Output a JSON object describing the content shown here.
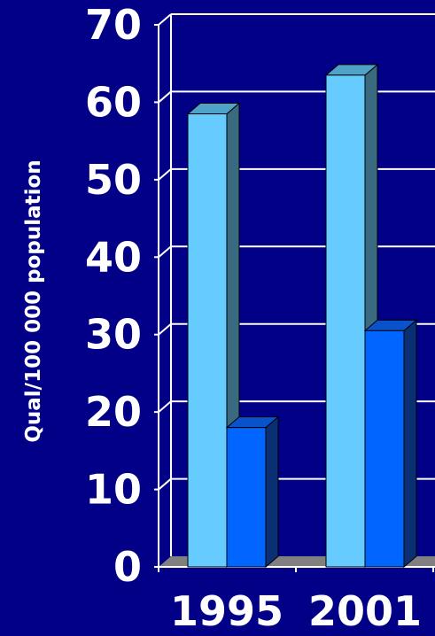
{
  "chart_data": {
    "type": "bar",
    "title": "",
    "xlabel": "",
    "ylabel": "Qual/100 000 population",
    "categories": [
      "1995",
      "2001"
    ],
    "series": [
      {
        "values": [
          58.5,
          63.5
        ]
      },
      {
        "values": [
          18,
          30.5
        ]
      }
    ],
    "ylim": [
      0,
      70
    ],
    "yticks": [
      "0",
      "10",
      "20",
      "30",
      "40",
      "50",
      "60",
      "70"
    ],
    "grid": true,
    "legend": "none"
  },
  "colors": {
    "background": "#020087",
    "series_1_front": "#66ccff",
    "series_1_side": "#3a6a80",
    "series_1_top": "#4fa3c9",
    "series_2_front": "#0066ff",
    "series_2_side": "#0b2f73",
    "series_2_top": "#0a52cc",
    "grid": "#ffffff",
    "floor": "#808080"
  }
}
